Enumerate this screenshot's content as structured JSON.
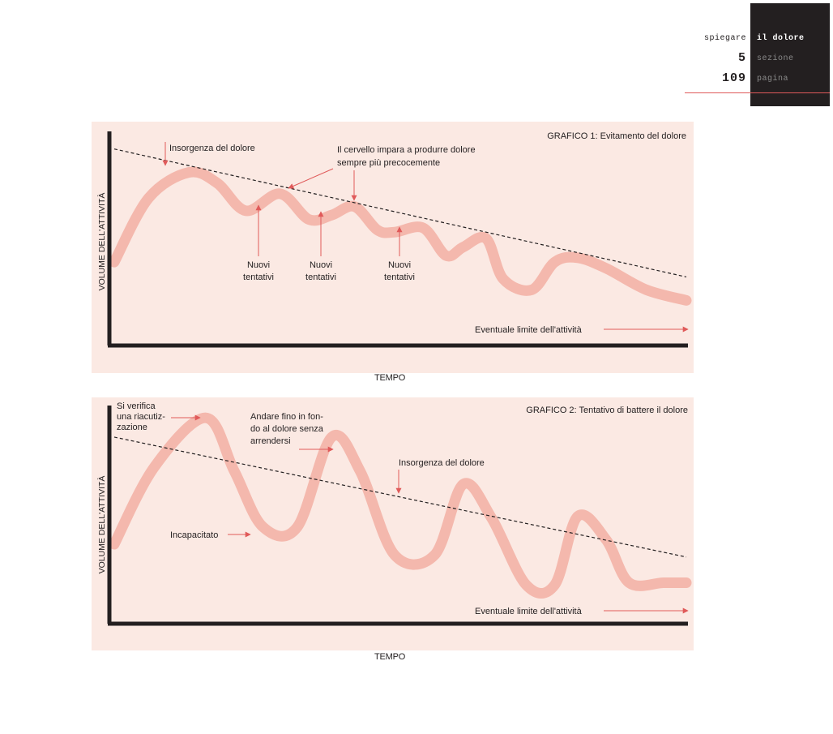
{
  "header": {
    "left_top": "spiegare",
    "right_top": "il dolore",
    "left_mid": "5",
    "right_mid": "sezione",
    "left_bottom": "109",
    "right_bottom": "pagina"
  },
  "colors": {
    "curve": "#f4b8ad",
    "arrow": "#e05a5a",
    "panel": "#fbe9e3",
    "axis": "#231f20"
  },
  "chart_data": [
    {
      "type": "line",
      "title": "GRAFICO 1: Evitamento del dolore",
      "xlabel": "TEMPO",
      "ylabel": "VOLUME DELL'ATTIVITÀ",
      "series": [
        {
          "name": "",
          "x": [
            0,
            0.06,
            0.13,
            0.18,
            0.23,
            0.29,
            0.34,
            0.38,
            0.42,
            0.46,
            0.49,
            0.54,
            0.58,
            0.61,
            0.65,
            0.68,
            0.73,
            0.77,
            0.81,
            0.86,
            0.93,
            1.0
          ],
          "y": [
            0.38,
            0.68,
            0.8,
            0.75,
            0.62,
            0.7,
            0.58,
            0.6,
            0.64,
            0.53,
            0.52,
            0.54,
            0.41,
            0.45,
            0.49,
            0.3,
            0.25,
            0.38,
            0.4,
            0.35,
            0.25,
            0.2
          ]
        }
      ],
      "trend_line": {
        "x": [
          0,
          1
        ],
        "y": [
          0.91,
          0.31
        ]
      },
      "annotations": [
        {
          "text": [
            "Insorgenza del dolore"
          ]
        },
        {
          "text": [
            "Il cervello impara a produrre dolore",
            "sempre più precocemente"
          ]
        },
        {
          "text": [
            "Nuovi",
            "tentativi"
          ]
        },
        {
          "text": [
            "Nuovi",
            "tentativi"
          ]
        },
        {
          "text": [
            "Nuovi",
            "tentativi"
          ]
        },
        {
          "text": [
            "Eventuale limite dell'attività"
          ]
        }
      ]
    },
    {
      "type": "line",
      "title": "GRAFICO 2: Tentativo di battere il dolore",
      "xlabel": "TEMPO",
      "ylabel": "VOLUME DELL'ATTIVITÀ",
      "series": [
        {
          "name": "",
          "x": [
            0,
            0.07,
            0.16,
            0.21,
            0.26,
            0.32,
            0.38,
            0.43,
            0.49,
            0.56,
            0.61,
            0.66,
            0.72,
            0.77,
            0.81,
            0.86,
            0.9,
            0.96,
            1.0
          ],
          "y": [
            0.36,
            0.72,
            0.95,
            0.7,
            0.44,
            0.44,
            0.86,
            0.7,
            0.31,
            0.31,
            0.64,
            0.48,
            0.17,
            0.17,
            0.49,
            0.38,
            0.18,
            0.18,
            0.18
          ]
        }
      ],
      "trend_line": {
        "x": [
          0,
          1
        ],
        "y": [
          0.86,
          0.3
        ]
      },
      "annotations": [
        {
          "text": [
            "Si verifica",
            "una riacutiz-",
            "zazione"
          ]
        },
        {
          "text": [
            "Andare fino in fon-",
            "do al dolore senza",
            "arrendersi"
          ]
        },
        {
          "text": [
            "Insorgenza del dolore"
          ]
        },
        {
          "text": [
            "Incapacitato"
          ]
        },
        {
          "text": [
            "Eventuale limite dell'attività"
          ]
        }
      ]
    }
  ]
}
